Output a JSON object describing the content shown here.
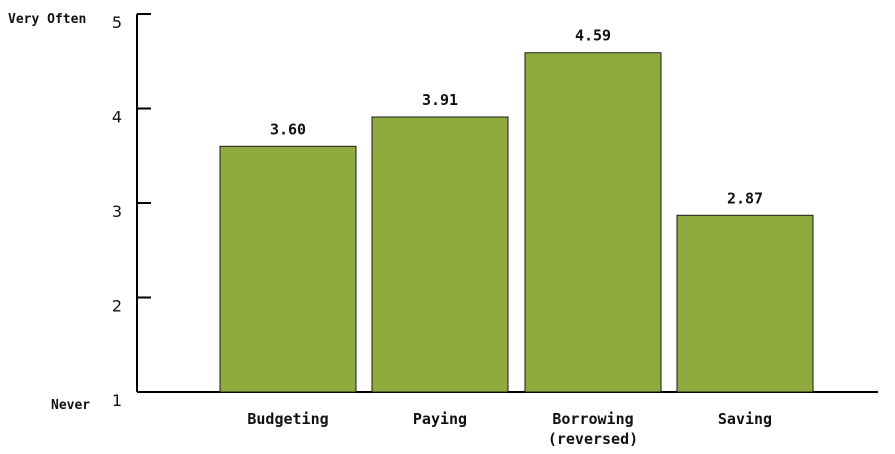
{
  "chart_data": {
    "type": "bar",
    "categories": [
      "Budgeting",
      "Paying",
      "Borrowing\n(reversed)",
      "Saving"
    ],
    "values": [
      3.6,
      3.91,
      4.59,
      2.87
    ],
    "value_labels": [
      "3.60",
      "3.91",
      "4.59",
      "2.87"
    ],
    "y_ticks": [
      1,
      2,
      3,
      4,
      5
    ],
    "y_anchor_top": "Very Often",
    "y_anchor_bottom": "Never",
    "title": "",
    "xlabel": "",
    "ylabel": "",
    "ylim": [
      1,
      5
    ],
    "grid": false,
    "bar_color": "#8fab3f"
  }
}
